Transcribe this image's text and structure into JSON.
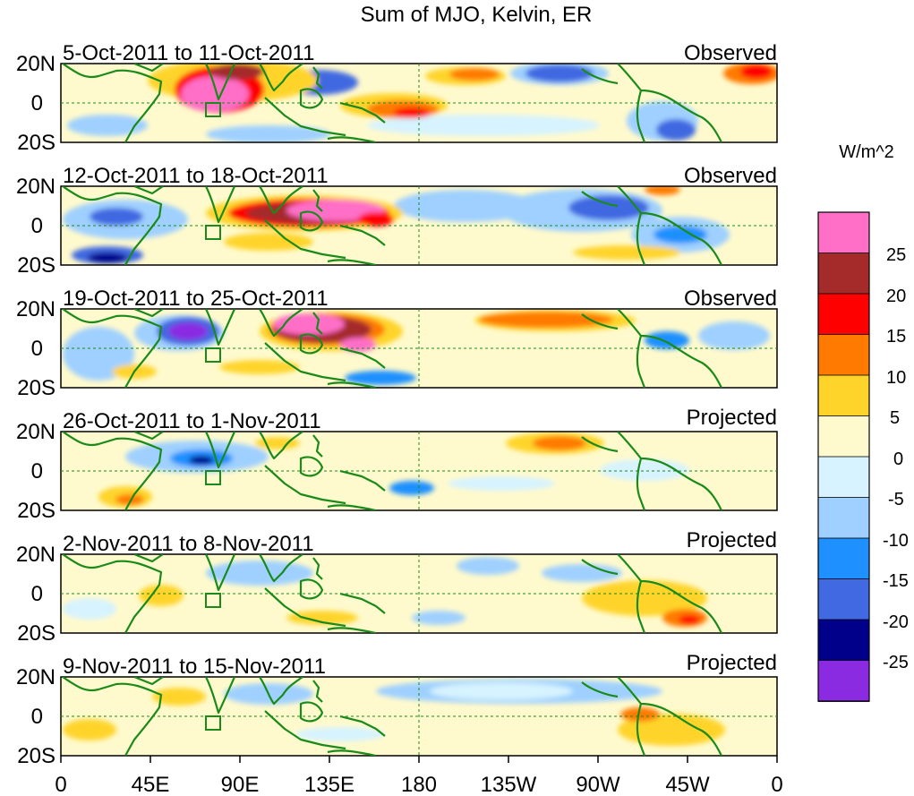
{
  "title": "Sum of MJO, Kelvin, ER",
  "panels": [
    {
      "date": "5-Oct-2011 to 11-Oct-2011",
      "status": "Observed"
    },
    {
      "date": "12-Oct-2011 to 18-Oct-2011",
      "status": "Observed"
    },
    {
      "date": "19-Oct-2011 to 25-Oct-2011",
      "status": "Observed"
    },
    {
      "date": "26-Oct-2011 to 1-Nov-2011",
      "status": "Projected"
    },
    {
      "date": "2-Nov-2011 to 8-Nov-2011",
      "status": "Projected"
    },
    {
      "date": "9-Nov-2011 to 15-Nov-2011",
      "status": "Projected"
    }
  ],
  "lat_labels": [
    "20N",
    "0",
    "20S"
  ],
  "lon_labels": [
    "0",
    "45E",
    "90E",
    "135E",
    "180",
    "135W",
    "90W",
    "45W",
    "0"
  ],
  "colorbar": {
    "unit": "W/m^2",
    "labels": [
      "25",
      "20",
      "15",
      "10",
      "5",
      "0",
      "-5",
      "-10",
      "-15",
      "-20",
      "-25"
    ],
    "colors": [
      "#ff6ec7",
      "#a52a2a",
      "#ff0000",
      "#ff7a00",
      "#ffd42a",
      "#fffacd",
      "#d6f3ff",
      "#9fd0ff",
      "#1e90ff",
      "#4169e1",
      "#00008b",
      "#8a2be2"
    ]
  },
  "colors": {
    "coast": "#1a8a1a",
    "reference": "#1a8a1a"
  }
}
